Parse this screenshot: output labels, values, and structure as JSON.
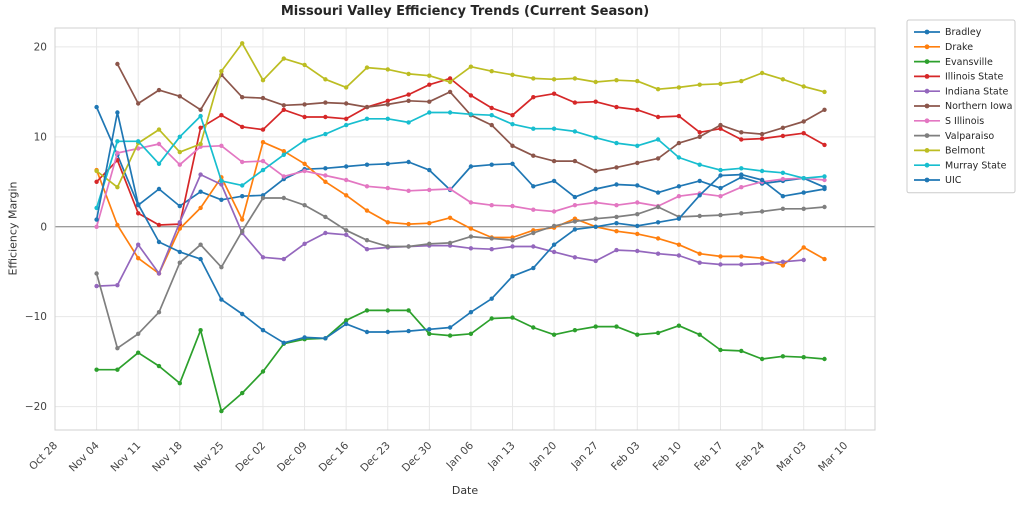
{
  "title": "Missouri Valley Efficiency Trends (Current Season)",
  "xlabel": "Date",
  "ylabel": "Efficiency Margin",
  "colors": {
    "grid": "#e7e7e7",
    "zero_line": "#808080",
    "spine": "#d0d0d0",
    "tick_text": "#444444",
    "title_text": "#262626",
    "legend_border": "#cccccc",
    "legend_bg": "#ffffff"
  },
  "chart_data": {
    "type": "line",
    "title": "Missouri Valley Efficiency Trends (Current Season)",
    "xlabel": "Date",
    "ylabel": "Efficiency Margin",
    "grid": true,
    "zero_line": true,
    "legend_position": "outside-right",
    "xlim_days": [
      0,
      138
    ],
    "ylim": [
      -22.6,
      22.1
    ],
    "y_ticks": [
      -20,
      -10,
      0,
      10,
      20
    ],
    "y_tick_labels": [
      "−20",
      "−10",
      "0",
      "10",
      "20"
    ],
    "x_tick_days": [
      0,
      7,
      14,
      21,
      28,
      35,
      42,
      49,
      56,
      63,
      70,
      77,
      84,
      91,
      98,
      105,
      112,
      119,
      126,
      133
    ],
    "x_tick_labels": [
      "Oct 28",
      "Nov 04",
      "Nov 11",
      "Nov 18",
      "Nov 25",
      "Dec 02",
      "Dec 09",
      "Dec 16",
      "Dec 23",
      "Dec 30",
      "Jan 06",
      "Jan 13",
      "Jan 20",
      "Jan 27",
      "Feb 03",
      "Feb 10",
      "Feb 17",
      "Feb 24",
      "Mar 03",
      "Mar 10"
    ],
    "sample_days": [
      7,
      10.5,
      14,
      17.5,
      21,
      24.5,
      28,
      31.5,
      35,
      38.5,
      42,
      45.5,
      49,
      52.5,
      56,
      59.5,
      63,
      66.5,
      70,
      73.5,
      77,
      80.5,
      84,
      87.5,
      91,
      94.5,
      98,
      101.5,
      105,
      108.5,
      112,
      115.5,
      119,
      122.5,
      126,
      129.5
    ],
    "series": [
      {
        "name": "Bradley",
        "color": "#1f77b4",
        "values": [
          13.3,
          8.0,
          2.4,
          4.2,
          2.3,
          3.9,
          3.0,
          3.4,
          3.5,
          5.3,
          6.4,
          6.5,
          6.7,
          6.9,
          7.0,
          7.2,
          6.3,
          4.1,
          6.7,
          6.9,
          7.0,
          4.5,
          5.1,
          3.3,
          4.2,
          4.7,
          4.6,
          3.8,
          4.5,
          5.1,
          4.3,
          5.5,
          4.8,
          5.1,
          5.4,
          4.4
        ]
      },
      {
        "name": "Drake",
        "color": "#ff7f0e",
        "values": [
          6.3,
          0.2,
          -3.5,
          -5.2,
          -0.2,
          2.1,
          5.5,
          0.8,
          9.4,
          8.4,
          7.0,
          5.0,
          3.5,
          1.8,
          0.5,
          0.3,
          0.4,
          1.0,
          -0.2,
          -1.2,
          -1.2,
          -0.4,
          -0.1,
          0.9,
          0.0,
          -0.5,
          -0.8,
          -1.3,
          -2.0,
          -3.0,
          -3.3,
          -3.3,
          -3.5,
          -4.3,
          -2.3,
          -3.6
        ]
      },
      {
        "name": "Evansville",
        "color": "#2ca02c",
        "values": [
          -15.9,
          -15.9,
          -14.0,
          -15.5,
          -17.4,
          -11.5,
          -20.5,
          -18.5,
          -16.1,
          -13.0,
          -12.5,
          -12.4,
          -10.4,
          -9.3,
          -9.3,
          -9.3,
          -11.9,
          -12.1,
          -11.9,
          -10.2,
          -10.1,
          -11.2,
          -12.0,
          -11.5,
          -11.1,
          -11.1,
          -12.0,
          -11.8,
          -11.0,
          -12.0,
          -13.7,
          -13.8,
          -14.7,
          -14.4,
          -14.5,
          -14.7
        ]
      },
      {
        "name": "Illinois State",
        "color": "#d62728",
        "values": [
          5.0,
          7.4,
          1.5,
          0.2,
          0.3,
          11.0,
          12.4,
          11.1,
          10.8,
          13.0,
          12.2,
          12.2,
          12.0,
          13.3,
          14.0,
          14.7,
          15.8,
          16.5,
          14.6,
          13.2,
          12.4,
          14.4,
          14.8,
          13.8,
          13.9,
          13.3,
          13.0,
          12.2,
          12.3,
          10.5,
          10.9,
          9.7,
          9.8,
          10.1,
          10.4,
          9.1
        ]
      },
      {
        "name": "Indiana State",
        "color": "#9467bd",
        "values": [
          -6.6,
          -6.5,
          -2.0,
          -5.2,
          0.5,
          5.8,
          4.7,
          -0.7,
          -3.4,
          -3.6,
          -1.9,
          -0.7,
          -0.9,
          -2.5,
          -2.3,
          -2.2,
          -2.1,
          -2.1,
          -2.4,
          -2.5,
          -2.2,
          -2.2,
          -2.8,
          -3.4,
          -3.8,
          -2.6,
          -2.7,
          -3.0,
          -3.2,
          -4.0,
          -4.2,
          -4.2,
          -4.1,
          -3.9,
          -3.7,
          null
        ]
      },
      {
        "name": "Northern Iowa",
        "color": "#8c564b",
        "values": [
          null,
          18.1,
          13.7,
          15.2,
          14.5,
          13.0,
          16.9,
          14.4,
          14.3,
          13.5,
          13.6,
          13.8,
          13.7,
          13.3,
          13.6,
          14.0,
          13.9,
          15.0,
          12.4,
          11.3,
          9.0,
          7.9,
          7.3,
          7.3,
          6.2,
          6.6,
          7.1,
          7.6,
          9.3,
          10.0,
          11.3,
          10.5,
          10.3,
          11.0,
          11.7,
          13.0
        ]
      },
      {
        "name": "S Illinois",
        "color": "#e377c2",
        "values": [
          0.0,
          8.2,
          8.7,
          9.2,
          6.9,
          8.9,
          9.0,
          7.2,
          7.3,
          5.6,
          6.2,
          5.7,
          5.2,
          4.5,
          4.3,
          4.0,
          4.1,
          4.2,
          2.7,
          2.4,
          2.3,
          1.9,
          1.7,
          2.4,
          2.7,
          2.4,
          2.7,
          2.3,
          3.4,
          3.7,
          3.4,
          4.4,
          5.0,
          5.3,
          5.4,
          5.2
        ]
      },
      {
        "name": "Valparaiso",
        "color": "#7f7f7f",
        "values": [
          -5.2,
          -13.5,
          -11.9,
          -9.5,
          -4.0,
          -2.0,
          -4.5,
          -0.5,
          3.2,
          3.2,
          2.4,
          1.1,
          -0.4,
          -1.5,
          -2.2,
          -2.2,
          -1.9,
          -1.8,
          -1.1,
          -1.3,
          -1.5,
          -0.7,
          0.1,
          0.6,
          0.9,
          1.1,
          1.4,
          2.2,
          1.1,
          1.2,
          1.3,
          1.5,
          1.7,
          2.0,
          2.0,
          2.2
        ]
      },
      {
        "name": "Belmont",
        "color": "#bcbd22",
        "values": [
          6.2,
          4.4,
          9.3,
          10.8,
          8.3,
          9.2,
          17.3,
          20.4,
          16.3,
          18.7,
          18.0,
          16.4,
          15.5,
          17.7,
          17.5,
          17.0,
          16.8,
          16.1,
          17.8,
          17.3,
          16.9,
          16.5,
          16.4,
          16.5,
          16.1,
          16.3,
          16.2,
          15.3,
          15.5,
          15.8,
          15.9,
          16.2,
          17.1,
          16.4,
          15.6,
          15.0
        ]
      },
      {
        "name": "Murray State",
        "color": "#17becf",
        "values": [
          2.1,
          9.5,
          9.5,
          7.0,
          10.0,
          12.3,
          5.1,
          4.6,
          6.3,
          8.0,
          9.6,
          10.3,
          11.3,
          12.0,
          12.0,
          11.6,
          12.7,
          12.7,
          12.5,
          12.4,
          11.4,
          10.9,
          10.9,
          10.6,
          9.9,
          9.3,
          9.0,
          9.7,
          7.7,
          6.9,
          6.3,
          6.5,
          6.2,
          6.0,
          5.4,
          5.6
        ]
      },
      {
        "name": "UIC",
        "color": "#1f77b4",
        "values": [
          0.8,
          12.7,
          2.5,
          -1.7,
          -2.8,
          -3.6,
          -8.1,
          -9.7,
          -11.5,
          -12.9,
          -12.3,
          -12.4,
          -10.8,
          -11.7,
          -11.7,
          -11.6,
          -11.4,
          -11.2,
          -9.5,
          -8.0,
          -5.5,
          -4.6,
          -2.0,
          -0.3,
          0.0,
          0.4,
          0.1,
          0.5,
          0.9,
          3.5,
          5.7,
          5.8,
          5.2,
          3.4,
          3.8,
          4.2
        ]
      }
    ]
  }
}
